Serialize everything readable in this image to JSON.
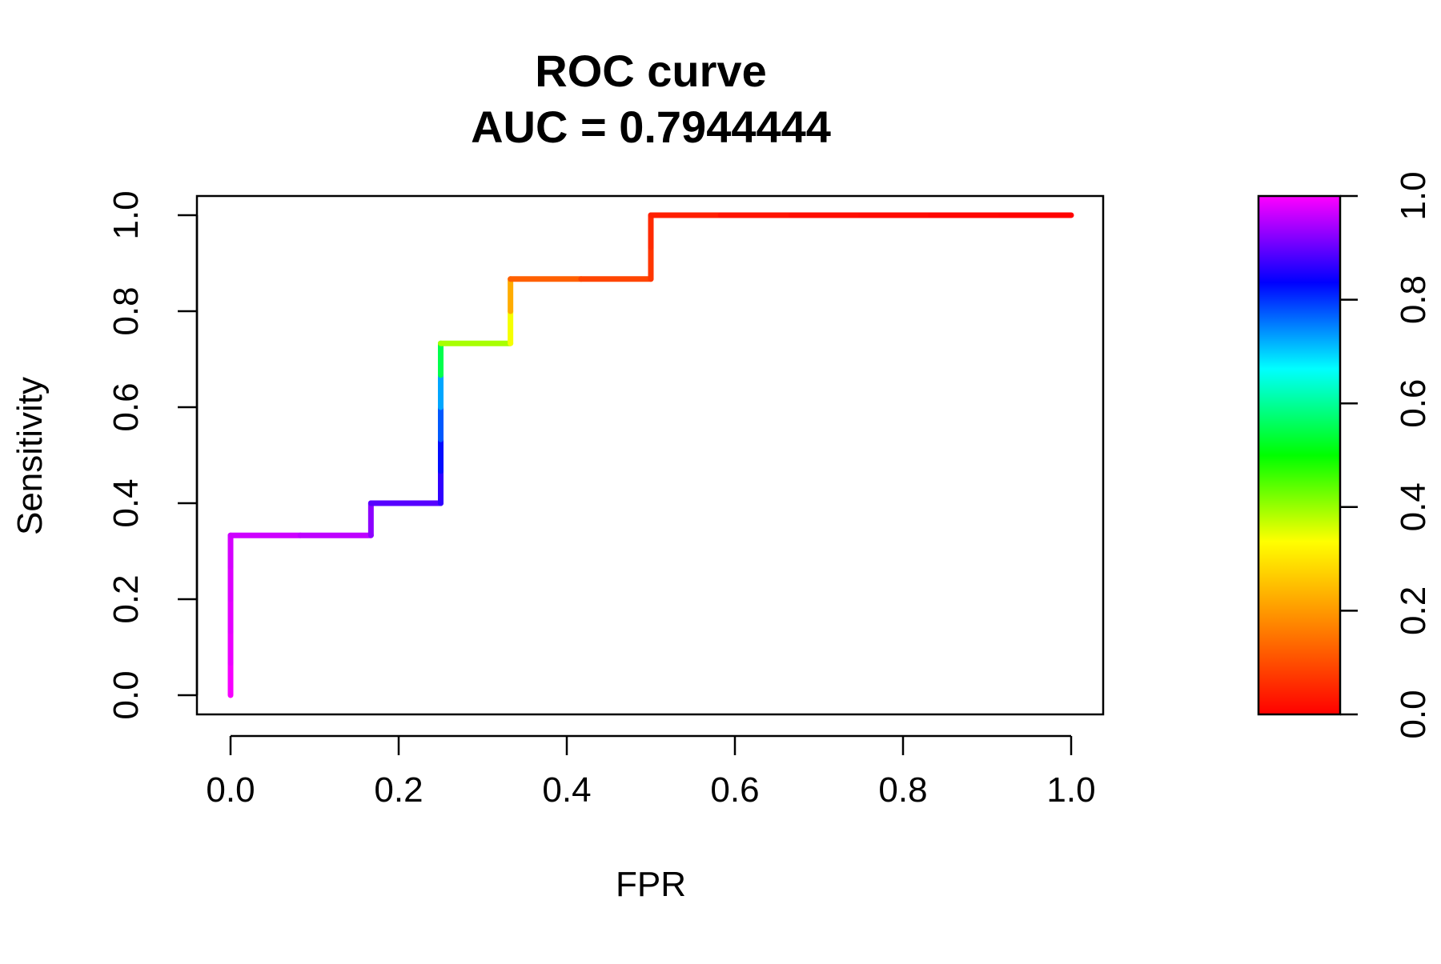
{
  "chart_data": {
    "type": "line",
    "title": "ROC curve",
    "subtitle": "AUC = 0.7944444",
    "xlabel": "FPR",
    "ylabel": "Sensitivity",
    "xlim": [
      0,
      1
    ],
    "ylim": [
      0,
      1
    ],
    "grid": false,
    "x_ticks": [
      "0.0",
      "0.2",
      "0.4",
      "0.6",
      "0.8",
      "1.0"
    ],
    "y_ticks": [
      "0.0",
      "0.2",
      "0.4",
      "0.6",
      "0.8",
      "1.0"
    ],
    "series": [
      {
        "points": [
          {
            "x": 0.0,
            "y": 0.0,
            "cutoff": 1.0
          },
          {
            "x": 0.0,
            "y": 0.067,
            "cutoff": 0.99
          },
          {
            "x": 0.0,
            "y": 0.133,
            "cutoff": 0.985
          },
          {
            "x": 0.0,
            "y": 0.2,
            "cutoff": 0.98
          },
          {
            "x": 0.0,
            "y": 0.267,
            "cutoff": 0.975
          },
          {
            "x": 0.0,
            "y": 0.333,
            "cutoff": 0.97
          },
          {
            "x": 0.083,
            "y": 0.333,
            "cutoff": 0.965
          },
          {
            "x": 0.167,
            "y": 0.333,
            "cutoff": 0.95
          },
          {
            "x": 0.167,
            "y": 0.4,
            "cutoff": 0.9
          },
          {
            "x": 0.25,
            "y": 0.4,
            "cutoff": 0.88
          },
          {
            "x": 0.25,
            "y": 0.467,
            "cutoff": 0.85
          },
          {
            "x": 0.25,
            "y": 0.533,
            "cutoff": 0.8
          },
          {
            "x": 0.25,
            "y": 0.6,
            "cutoff": 0.75
          },
          {
            "x": 0.25,
            "y": 0.667,
            "cutoff": 0.7
          },
          {
            "x": 0.25,
            "y": 0.733,
            "cutoff": 0.4
          },
          {
            "x": 0.333,
            "y": 0.733,
            "cutoff": 0.38
          },
          {
            "x": 0.333,
            "y": 0.8,
            "cutoff": 0.3
          },
          {
            "x": 0.333,
            "y": 0.867,
            "cutoff": 0.15
          },
          {
            "x": 0.417,
            "y": 0.867,
            "cutoff": 0.1
          },
          {
            "x": 0.5,
            "y": 0.867,
            "cutoff": 0.08
          },
          {
            "x": 0.5,
            "y": 0.933,
            "cutoff": 0.06
          },
          {
            "x": 0.5,
            "y": 1.0,
            "cutoff": 0.05
          },
          {
            "x": 0.583,
            "y": 1.0,
            "cutoff": 0.03
          },
          {
            "x": 0.667,
            "y": 1.0,
            "cutoff": 0.02
          },
          {
            "x": 0.75,
            "y": 1.0,
            "cutoff": 0.015
          },
          {
            "x": 0.833,
            "y": 1.0,
            "cutoff": 0.01
          },
          {
            "x": 0.917,
            "y": 1.0,
            "cutoff": 0.005
          },
          {
            "x": 1.0,
            "y": 1.0,
            "cutoff": 0.0
          }
        ]
      }
    ],
    "colorbar": {
      "range": [
        0,
        1
      ],
      "ticks": [
        "0.0",
        "0.2",
        "0.4",
        "0.6",
        "0.8",
        "1.0"
      ],
      "colors": [
        "#ff0000",
        "#ff8000",
        "#ffff00",
        "#00ff00",
        "#00ffff",
        "#0000ff",
        "#ff00ff"
      ]
    }
  }
}
